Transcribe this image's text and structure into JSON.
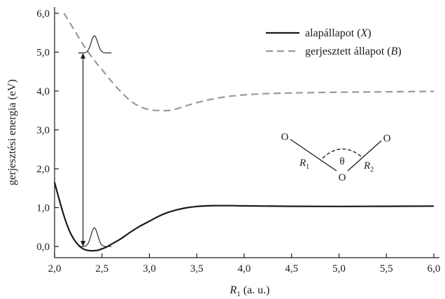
{
  "chart_data": {
    "type": "line",
    "xlabel": {
      "var": "R",
      "sub": "1",
      "rest": " (a. u.)"
    },
    "ylabel": "gerjesztési energia (eV)",
    "xlim": [
      2.0,
      6.0
    ],
    "ylim": [
      -0.2,
      6.1
    ],
    "xticks": [
      "2,0",
      "2,5",
      "3,0",
      "3,5",
      "4,0",
      "4,5",
      "5,0",
      "5,5",
      "6,0"
    ],
    "yticks": [
      "0,0",
      "1,0",
      "2,0",
      "3,0",
      "4,0",
      "5,0",
      "6,0"
    ],
    "legend": {
      "placement": "top-right"
    },
    "series": [
      {
        "name": "alapállapot",
        "name_symbol": "X",
        "style": "solid",
        "color": "#1a1a1a",
        "x": [
          2.0,
          2.05,
          2.1,
          2.15,
          2.2,
          2.25,
          2.3,
          2.35,
          2.4,
          2.45,
          2.5,
          2.55,
          2.6,
          2.7,
          2.8,
          2.9,
          3.0,
          3.1,
          3.2,
          3.3,
          3.4,
          3.5,
          3.6,
          3.7,
          3.8,
          3.9,
          4.0,
          4.5,
          5.0,
          5.5,
          6.0
        ],
        "y": [
          1.65,
          1.2,
          0.78,
          0.44,
          0.2,
          0.04,
          -0.06,
          -0.1,
          -0.11,
          -0.1,
          -0.06,
          -0.01,
          0.06,
          0.2,
          0.37,
          0.52,
          0.65,
          0.78,
          0.88,
          0.95,
          1.0,
          1.03,
          1.045,
          1.05,
          1.05,
          1.05,
          1.045,
          1.035,
          1.03,
          1.035,
          1.04
        ]
      },
      {
        "name": "gerjesztett állapot",
        "name_symbol": "B",
        "style": "dashed",
        "color": "#999999",
        "x": [
          2.1,
          2.2,
          2.3,
          2.4,
          2.5,
          2.6,
          2.7,
          2.8,
          2.9,
          3.0,
          3.1,
          3.2,
          3.3,
          3.4,
          3.5,
          3.6,
          3.7,
          3.8,
          3.9,
          4.0,
          4.2,
          4.5,
          5.0,
          5.5,
          6.0
        ],
        "y": [
          6.0,
          5.6,
          5.2,
          4.85,
          4.55,
          4.25,
          3.98,
          3.75,
          3.6,
          3.52,
          3.5,
          3.5,
          3.55,
          3.63,
          3.7,
          3.76,
          3.81,
          3.85,
          3.88,
          3.9,
          3.93,
          3.95,
          3.97,
          3.98,
          3.99
        ]
      }
    ],
    "annotations": {
      "transition_arrow": {
        "x": 2.3,
        "y_from": 0.0,
        "y_to": 4.98
      },
      "wavepacket_ground": {
        "x_center": 2.42,
        "baseline": 0.0,
        "peak": 0.48,
        "width": 0.035,
        "x_range": [
          2.25,
          2.6
        ]
      },
      "wavepacket_excited": {
        "x_center": 2.42,
        "baseline": 4.98,
        "peak": 5.42,
        "width": 0.035,
        "x_range": [
          2.25,
          2.6
        ]
      }
    },
    "molecule_inset": {
      "atom_left": "O",
      "atom_center": "O",
      "atom_right": "O",
      "bond_left": {
        "var": "R",
        "sub": "1"
      },
      "bond_right": {
        "var": "R",
        "sub": "2"
      },
      "angle": "θ"
    }
  }
}
